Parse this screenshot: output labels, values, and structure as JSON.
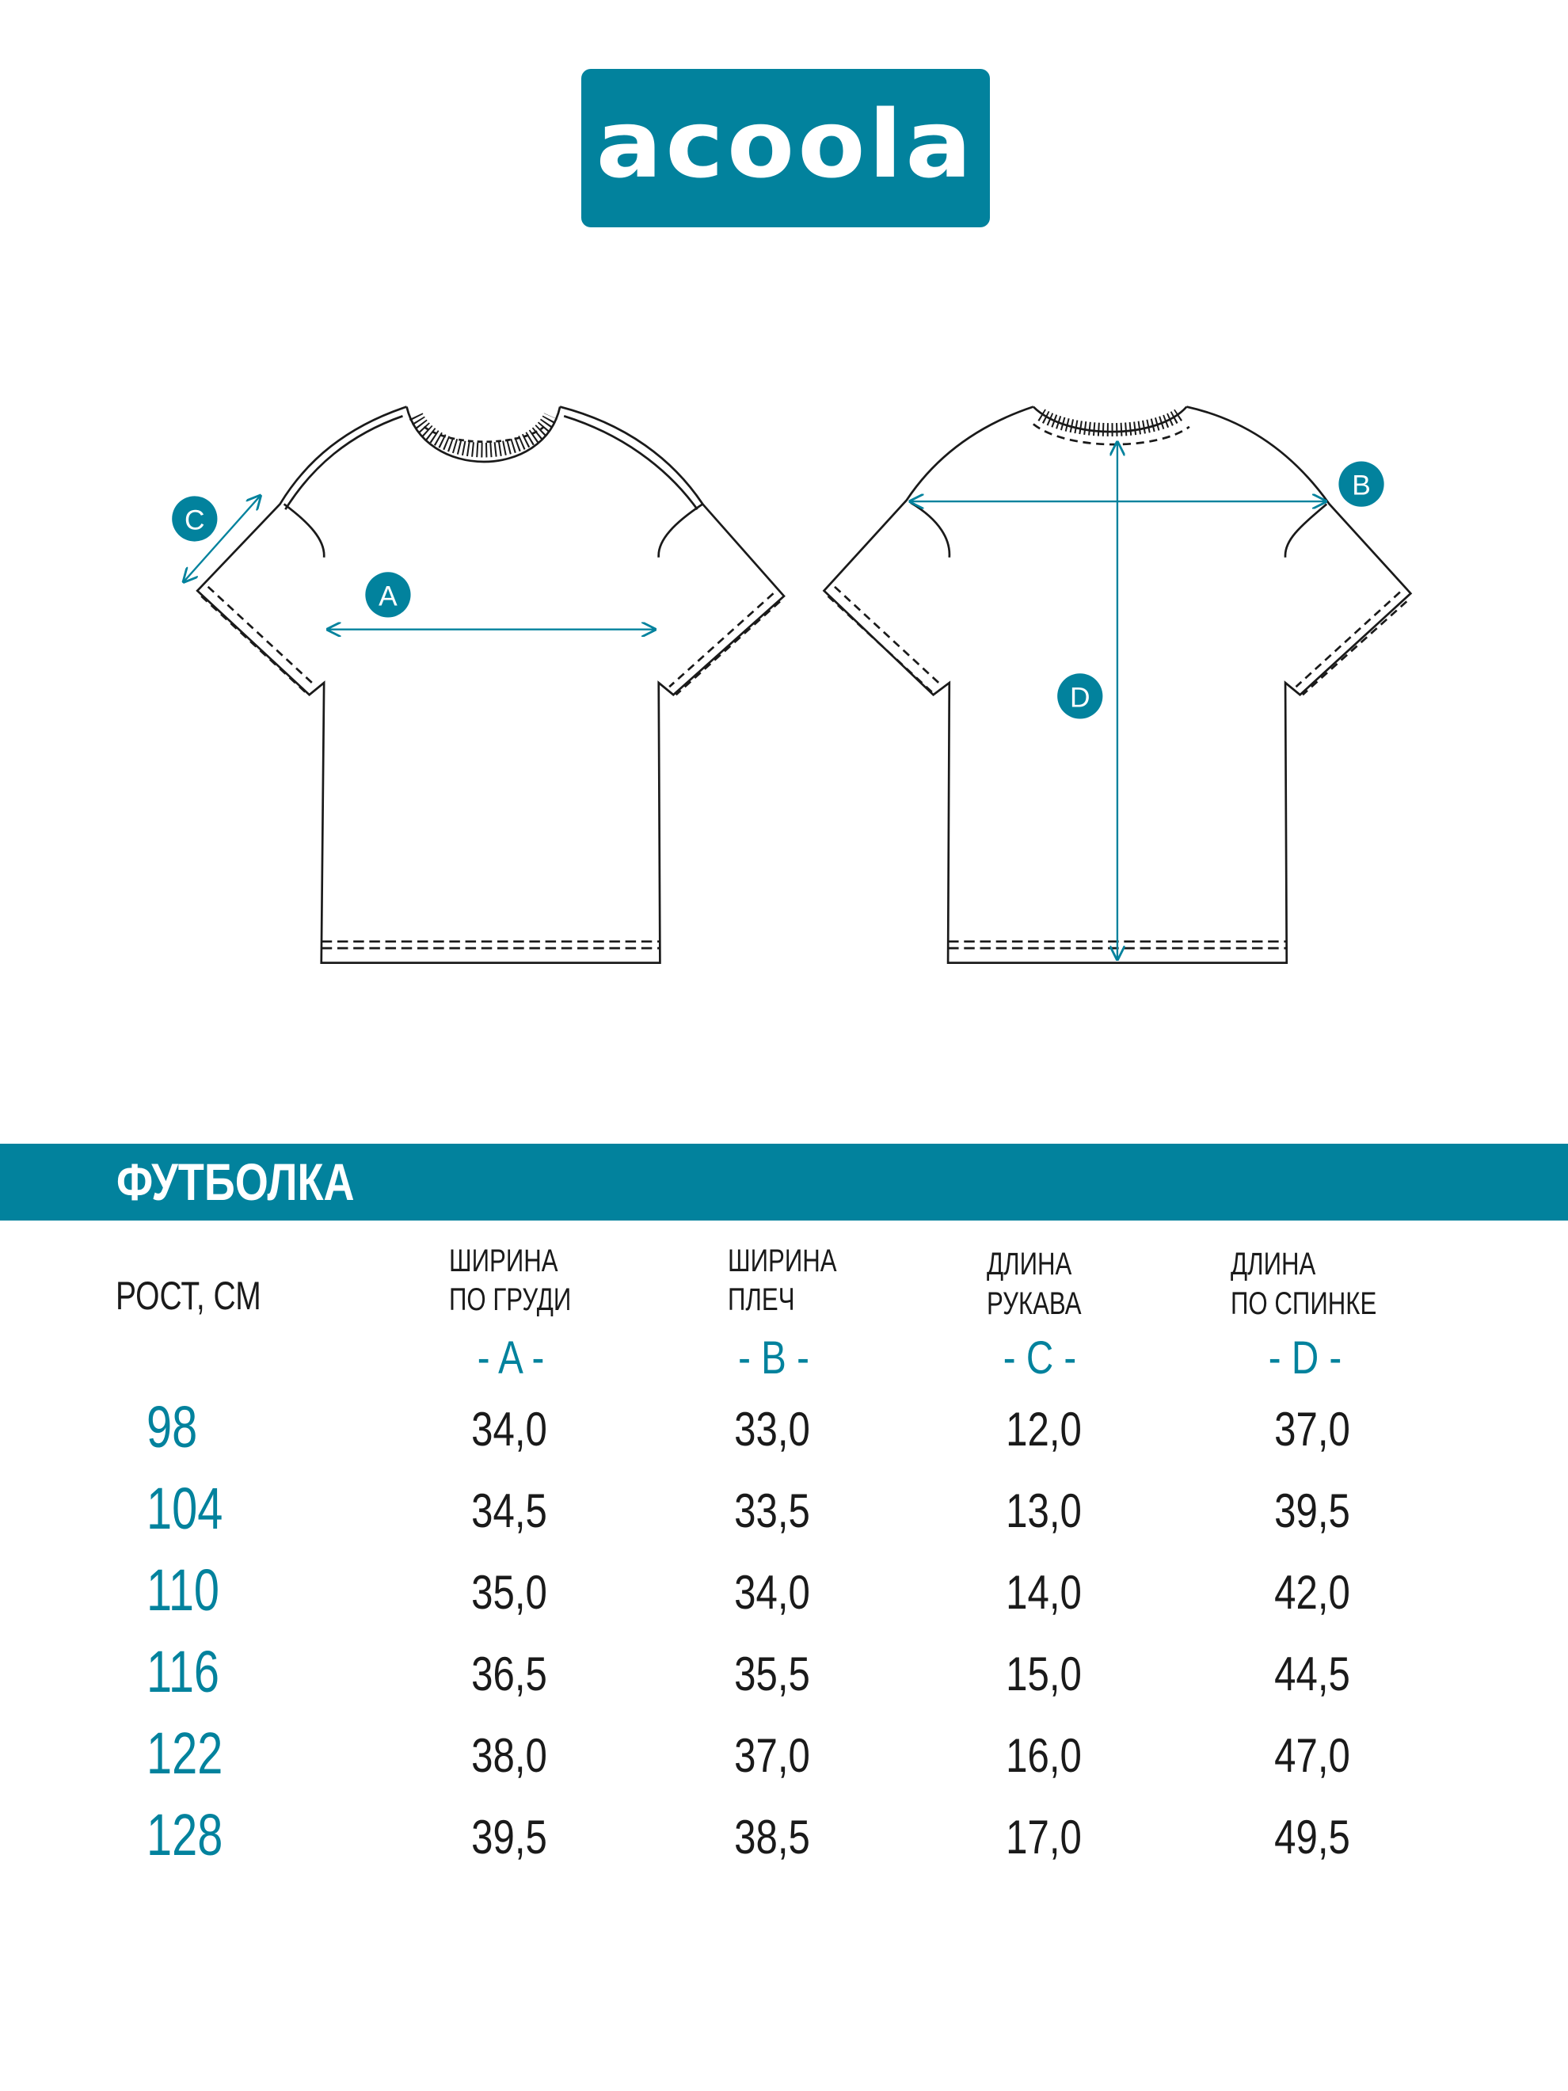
{
  "brand": {
    "logo_text": "acoola",
    "color": "#02829d"
  },
  "diagram": {
    "markers": [
      "A",
      "B",
      "C",
      "D"
    ]
  },
  "table": {
    "title": "ФУТБОЛКА",
    "row_header": "РОСТ, СМ",
    "columns": [
      {
        "line1": "ШИРИНА",
        "line2": "ПО ГРУДИ",
        "letter": "- A -"
      },
      {
        "line1": "ШИРИНА",
        "line2": "ПЛЕЧ",
        "letter": "- B -"
      },
      {
        "line1": "ДЛИНА",
        "line2": "РУКАВА",
        "letter": "- C -"
      },
      {
        "line1": "ДЛИНА",
        "line2": "ПО СПИНКЕ",
        "letter": "- D -"
      }
    ],
    "rows": [
      {
        "size": "98",
        "values": [
          "34,0",
          "33,0",
          "12,0",
          "37,0"
        ]
      },
      {
        "size": "104",
        "values": [
          "34,5",
          "33,5",
          "13,0",
          "39,5"
        ]
      },
      {
        "size": "110",
        "values": [
          "35,0",
          "34,0",
          "14,0",
          "42,0"
        ]
      },
      {
        "size": "116",
        "values": [
          "36,5",
          "35,5",
          "15,0",
          "44,5"
        ]
      },
      {
        "size": "122",
        "values": [
          "38,0",
          "37,0",
          "16,0",
          "47,0"
        ]
      },
      {
        "size": "128",
        "values": [
          "39,5",
          "38,5",
          "17,0",
          "49,5"
        ]
      }
    ]
  }
}
